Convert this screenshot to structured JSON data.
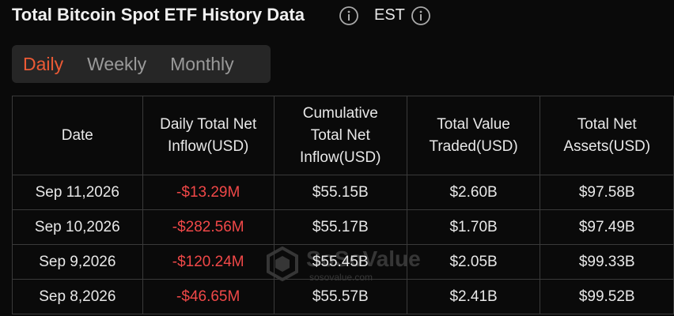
{
  "header": {
    "title": "Total Bitcoin Spot ETF History Data",
    "timezone": "EST"
  },
  "tabs": {
    "items": [
      "Daily",
      "Weekly",
      "Monthly"
    ],
    "active": 0
  },
  "table": {
    "columns": [
      "Date",
      "Daily Total Net\nInflow(USD)",
      "Cumulative\nTotal Net\nInflow(USD)",
      "Total Value\nTraded(USD)",
      "Total Net\nAssets(USD)"
    ],
    "rows": [
      [
        "Sep 11,2026",
        "-$13.29M",
        "$55.15B",
        "$2.60B",
        "$97.58B"
      ],
      [
        "Sep 10,2026",
        "-$282.56M",
        "$55.17B",
        "$1.70B",
        "$97.49B"
      ],
      [
        "Sep 9,2026",
        "-$120.24M",
        "$55.45B",
        "$2.05B",
        "$99.33B"
      ],
      [
        "Sep 8,2026",
        "-$46.65M",
        "$55.57B",
        "$2.41B",
        "$99.52B"
      ]
    ]
  },
  "watermark": {
    "name": "SoSoValue",
    "url": "sosovalue.com"
  }
}
